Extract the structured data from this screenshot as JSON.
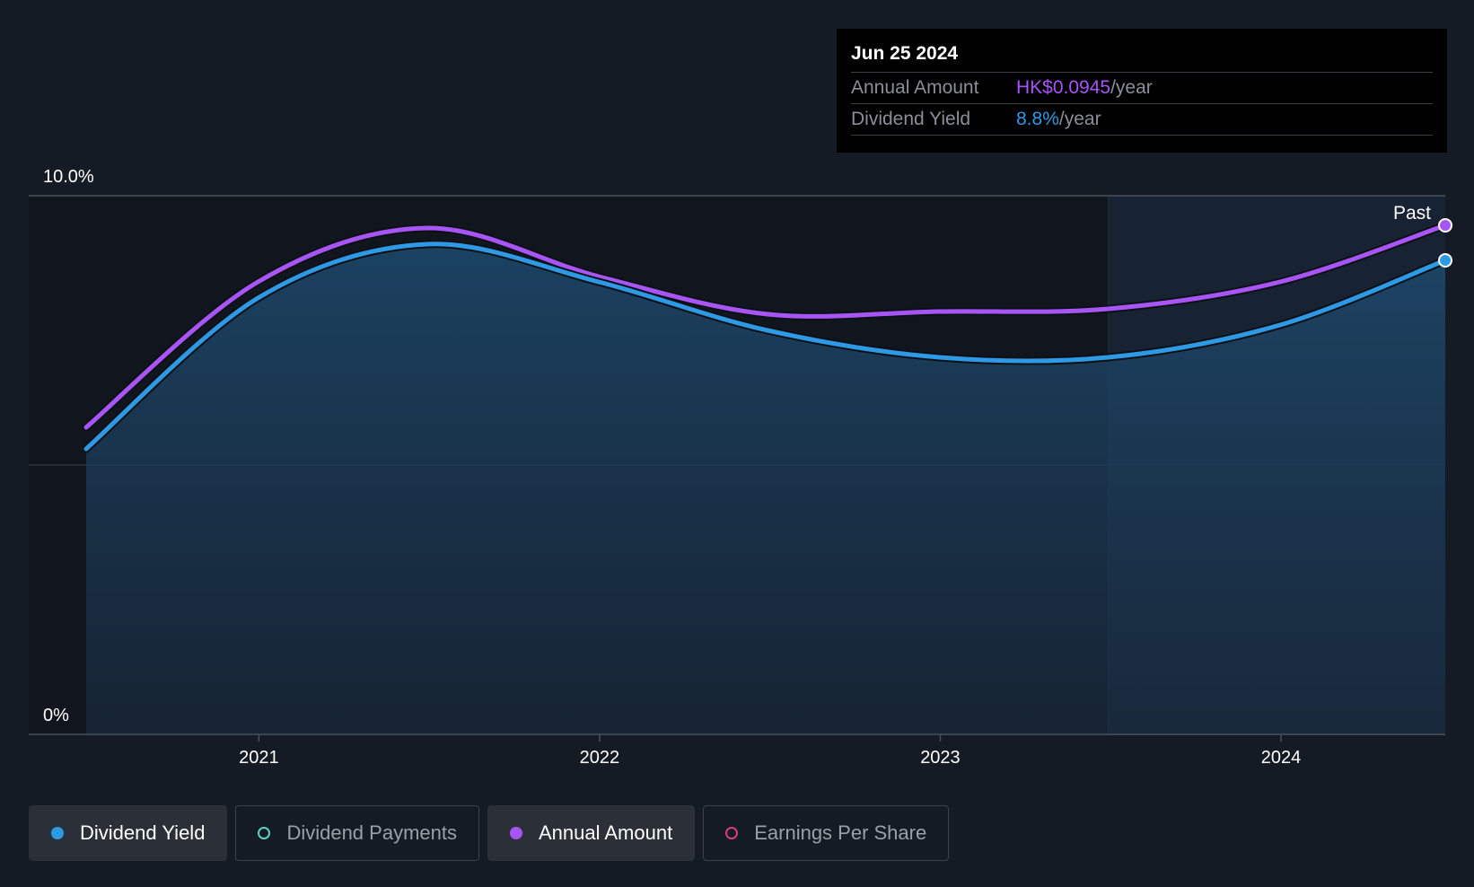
{
  "tooltip": {
    "date": "Jun 25 2024",
    "rows": [
      {
        "label": "Annual Amount",
        "value": "HK$0.0945",
        "unit": "/year"
      },
      {
        "label": "Dividend Yield",
        "value": "8.8%",
        "unit": "/year"
      }
    ]
  },
  "past_label": "Past",
  "legend": [
    {
      "label": "Dividend Yield",
      "active": true,
      "color": "#2e9ae6",
      "filled": true
    },
    {
      "label": "Dividend Payments",
      "active": false,
      "color": "#5ad1c2",
      "filled": false
    },
    {
      "label": "Annual Amount",
      "active": true,
      "color": "#a855f7",
      "filled": true
    },
    {
      "label": "Earnings Per Share",
      "active": false,
      "color": "#d63f82",
      "filled": false
    }
  ],
  "colors": {
    "background": "#151b24",
    "yield": "#2e9ae6",
    "annual": "#a855f7"
  },
  "chart_data": {
    "type": "line",
    "y_ticks": [
      "10.0%",
      "0%"
    ],
    "ylim": [
      0,
      10
    ],
    "x_ticks": [
      "2021",
      "2022",
      "2023",
      "2024"
    ],
    "xlim": [
      "2020-06-30",
      "2024-06-25"
    ],
    "past_start": "2023-06-30",
    "series": [
      {
        "name": "Dividend Yield",
        "color": "#2e9ae6",
        "fill": true,
        "points": [
          [
            "2020-06-30",
            5.3
          ],
          [
            "2020-12-31",
            8.1
          ],
          [
            "2021-06-30",
            9.1
          ],
          [
            "2021-12-31",
            8.4
          ],
          [
            "2022-06-30",
            7.5
          ],
          [
            "2022-12-31",
            7.0
          ],
          [
            "2023-06-30",
            7.0
          ],
          [
            "2023-12-31",
            7.6
          ],
          [
            "2024-06-25",
            8.8
          ]
        ]
      },
      {
        "name": "Annual Amount",
        "color": "#a855f7",
        "fill": false,
        "points": [
          [
            "2020-06-30",
            5.7
          ],
          [
            "2020-12-31",
            8.4
          ],
          [
            "2021-06-30",
            9.4
          ],
          [
            "2021-12-31",
            8.5
          ],
          [
            "2022-06-30",
            7.8
          ],
          [
            "2022-12-31",
            7.85
          ],
          [
            "2023-06-30",
            7.9
          ],
          [
            "2023-12-31",
            8.4
          ],
          [
            "2024-06-25",
            9.45
          ]
        ]
      }
    ]
  }
}
